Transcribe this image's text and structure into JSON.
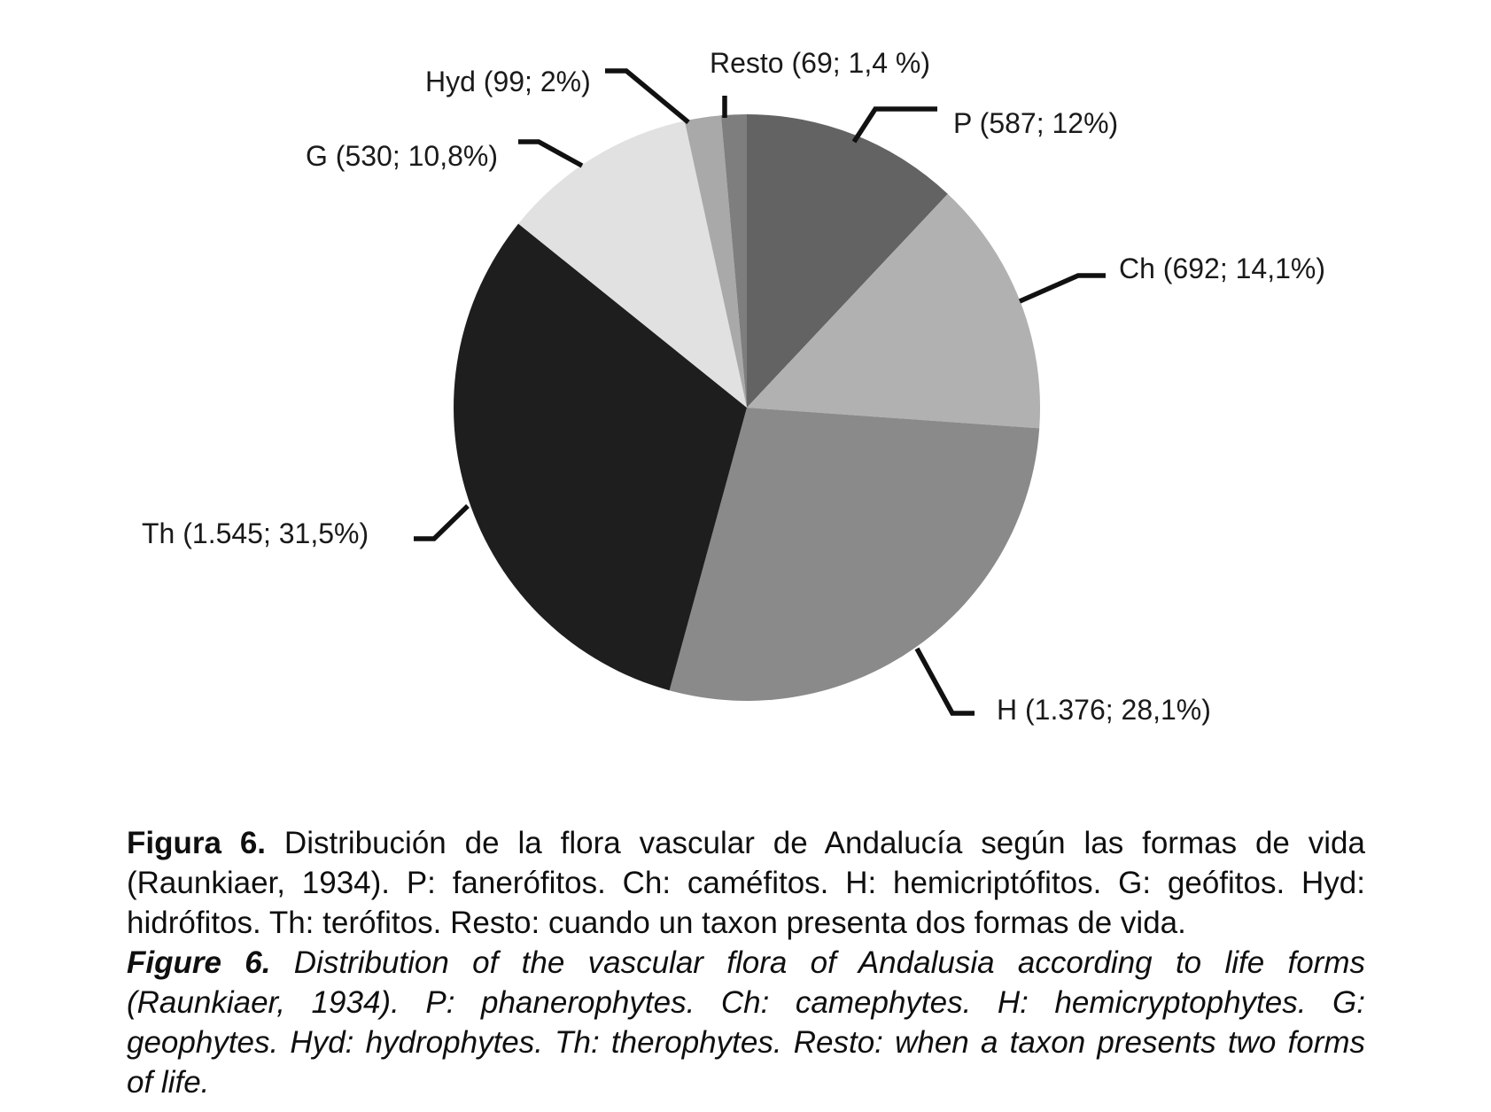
{
  "chart_data": {
    "type": "pie",
    "title": "",
    "categories": [
      "P",
      "Ch",
      "H",
      "Th",
      "G",
      "Hyd",
      "Resto"
    ],
    "values": [
      587,
      692,
      1376,
      1545,
      530,
      99,
      69
    ],
    "percentages": [
      12,
      14.1,
      28.1,
      31.5,
      10.8,
      2,
      1.4
    ],
    "labels": [
      "P (587; 12%)",
      "Ch (692; 14,1%)",
      "H (1.376; 28,1%)",
      "Th (1.545; 31,5%)",
      "G (530; 10,8%)",
      "Hyd (99; 2%)",
      "Resto (69; 1,4 %)"
    ],
    "colors": [
      "#636363",
      "#b1b1b1",
      "#8a8a8a",
      "#1e1e1e",
      "#e1e1e1",
      "#a9a9a9",
      "#7e7e7e"
    ],
    "start_angle_deg_from_12": 0,
    "direction": "clockwise",
    "legend_position": "none",
    "label_style": "leader-line callouts"
  },
  "caption": {
    "es": {
      "prefix": "Figura 6.",
      "lines": [
        "Distribución de la flora vascular de Andalucía según las formas de vida",
        "(Raunkiaer, 1934). P: fanerófitos. Ch: caméfitos. H: hemicriptófitos. G: geófitos. Hyd:",
        "hidrófitos. Th: terófitos. Resto: cuando un taxon presenta dos formas de vida."
      ]
    },
    "en": {
      "prefix": "Figure 6.",
      "lines": [
        "Distribution of the vascular flora of Andalusia according to life forms",
        "(Raunkiaer, 1934). P: phanerophytes. Ch: camephytes. H: hemicryptophytes. G:",
        "geophytes. Hyd: hydrophytes. Th: therophytes. Resto: when a taxon presents two forms",
        "of life."
      ]
    }
  }
}
